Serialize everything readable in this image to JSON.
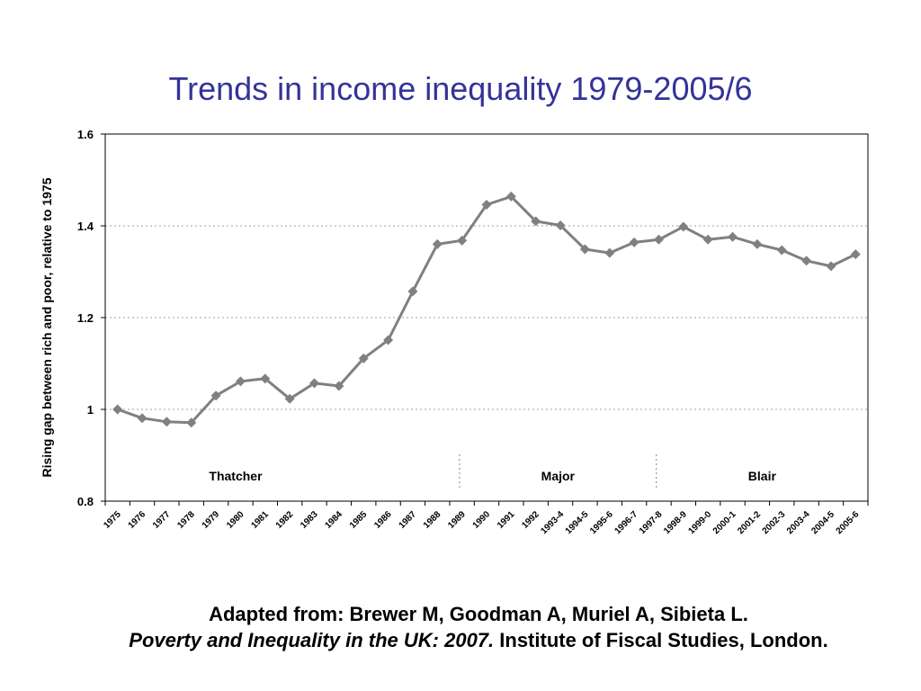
{
  "colors": {
    "title": "#333399",
    "series": "#808080",
    "grid": "#a0a0a0",
    "axis": "#000000"
  },
  "chart_data": {
    "type": "line",
    "title": "Trends in income inequality 1979-2005/6",
    "xlabel": "",
    "ylabel": "Rising gap between rich and poor, relative to 1975",
    "ylim": [
      0.8,
      1.6
    ],
    "yticks": [
      "0.8",
      "1",
      "1.2",
      "1.4",
      "1.6"
    ],
    "ytick_values": [
      0.8,
      1.0,
      1.2,
      1.4,
      1.6
    ],
    "grid": true,
    "categories": [
      "1975",
      "1976",
      "1977",
      "1978",
      "1979",
      "1980",
      "1981",
      "1982",
      "1983",
      "1984",
      "1985",
      "1986",
      "1987",
      "1988",
      "1989",
      "1990",
      "1991",
      "1992",
      "1993-4",
      "1994-5",
      "1995-6",
      "1996-7",
      "1997-8",
      "1998-9",
      "1999-0",
      "2000-1",
      "2001-2",
      "2002-3",
      "2003-4",
      "2004-5",
      "2005-6"
    ],
    "series": [
      {
        "name": "",
        "values": [
          1.0,
          0.981,
          0.973,
          0.971,
          1.03,
          1.061,
          1.067,
          1.023,
          1.057,
          1.051,
          1.111,
          1.151,
          1.257,
          1.36,
          1.368,
          1.446,
          1.464,
          1.41,
          1.401,
          1.349,
          1.341,
          1.364,
          1.37,
          1.398,
          1.37,
          1.376,
          1.36,
          1.347,
          1.324,
          1.312,
          1.338
        ]
      }
    ],
    "periods": [
      {
        "label": "Thatcher",
        "start": 0,
        "end": 13.9
      },
      {
        "label": "Major",
        "start": 13.9,
        "end": 21.9
      },
      {
        "label": "Blair",
        "start": 21.9,
        "end": 30.5
      }
    ]
  },
  "caption": {
    "line1": "Adapted from: Brewer M, Goodman A, Muriel A, Sibieta L.",
    "italic": "Poverty and Inequality in the UK: 2007.",
    "rest": " Institute of Fiscal Studies, London."
  }
}
